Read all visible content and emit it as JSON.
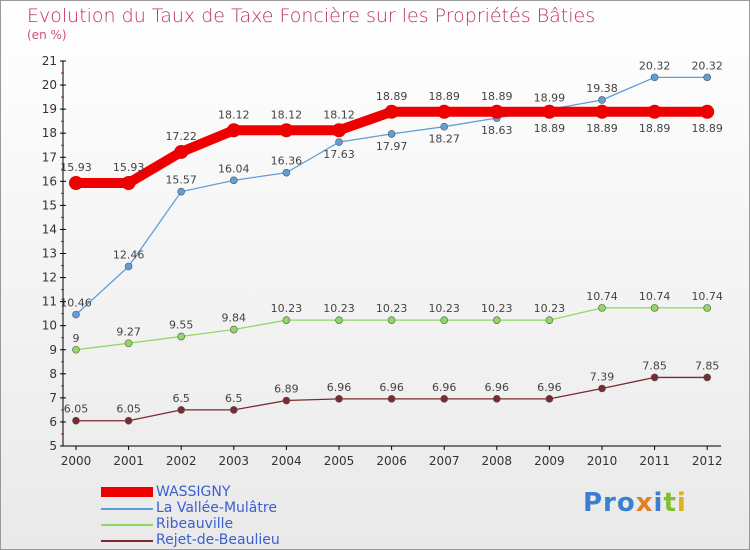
{
  "chart_data": {
    "type": "line",
    "title": "Evolution du Taux de Taxe Foncière sur les Propriétés Bâties",
    "ylabel": "(en %)",
    "ylim": [
      5,
      21
    ],
    "yticks": [
      "5",
      "6",
      "7",
      "8",
      "9",
      "10",
      "11",
      "12",
      "13",
      "14",
      "15",
      "16",
      "17",
      "18",
      "19",
      "20",
      "21"
    ],
    "categories": [
      "2000",
      "2001",
      "2002",
      "2003",
      "2004",
      "2005",
      "2006",
      "2007",
      "2008",
      "2009",
      "2010",
      "2011",
      "2012"
    ],
    "series": [
      {
        "name": "WASSIGNY",
        "color": "#ee0000",
        "values": [
          15.93,
          15.93,
          17.22,
          18.12,
          18.12,
          18.12,
          18.89,
          18.89,
          18.89,
          18.89,
          18.89,
          18.89,
          18.89
        ]
      },
      {
        "name": "La Vallée-Mulâtre",
        "color": "#5f9ed8",
        "values": [
          10.46,
          12.46,
          15.57,
          16.04,
          16.36,
          17.63,
          17.97,
          18.27,
          18.63,
          18.99,
          19.38,
          20.32,
          20.32
        ]
      },
      {
        "name": "Ribeauville",
        "color": "#90d860",
        "values": [
          9,
          9.27,
          9.55,
          9.84,
          10.23,
          10.23,
          10.23,
          10.23,
          10.23,
          10.23,
          10.74,
          10.74,
          10.74
        ]
      },
      {
        "name": "Rejet-de-Beaulieu",
        "color": "#7a2a30",
        "values": [
          6.05,
          6.05,
          6.5,
          6.5,
          6.89,
          6.96,
          6.96,
          6.96,
          6.96,
          6.96,
          7.39,
          7.85,
          7.85
        ]
      }
    ]
  },
  "logo": "Proxiti"
}
